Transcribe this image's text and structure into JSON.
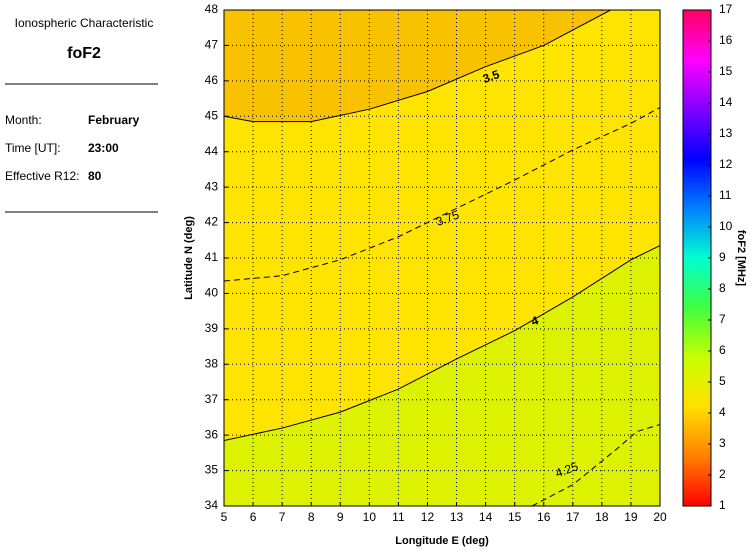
{
  "header": {
    "title": "Ionospheric Characteristic",
    "characteristic": "foF2",
    "fields": [
      [
        "Month:",
        "February"
      ],
      [
        "Time [UT]:",
        "23:00"
      ],
      [
        "Effective R12:",
        "80"
      ]
    ]
  },
  "chart_data": {
    "type": "contour",
    "xlabel": "Longitude E (deg)",
    "ylabel": "Latitude N (deg)",
    "xlim": [
      5,
      20
    ],
    "xticks": [
      5,
      6,
      7,
      8,
      9,
      10,
      11,
      12,
      13,
      14,
      15,
      16,
      17,
      18,
      19,
      20
    ],
    "ylim": [
      34,
      48
    ],
    "yticks": [
      34,
      35,
      36,
      37,
      38,
      39,
      40,
      41,
      42,
      43,
      44,
      45,
      46,
      47,
      48
    ],
    "grid": true,
    "band_colors": {
      "high": "#f8c200",
      "mid": "#ffe400",
      "low": "#ddf200"
    },
    "series": [
      {
        "name": "3.5",
        "style": "solid",
        "label_at": [
          14.2,
          46.1
        ],
        "x": [
          5,
          6,
          8,
          10,
          12,
          14,
          16,
          18.3
        ],
        "y": [
          45.0,
          44.85,
          44.85,
          45.2,
          45.7,
          46.4,
          47.0,
          48
        ]
      },
      {
        "name": "3.75",
        "style": "dashed",
        "label_at": [
          12.7,
          42.1
        ],
        "x": [
          5,
          7,
          9,
          11,
          13,
          15,
          17,
          19,
          20
        ],
        "y": [
          40.35,
          40.5,
          40.95,
          41.6,
          42.4,
          43.2,
          44.05,
          44.8,
          45.25
        ]
      },
      {
        "name": "4",
        "style": "solid",
        "label_at": [
          15.7,
          39.2
        ],
        "x": [
          5,
          7,
          9,
          11,
          13,
          15,
          17,
          19,
          20
        ],
        "y": [
          35.85,
          36.2,
          36.65,
          37.3,
          38.15,
          38.95,
          39.9,
          40.95,
          41.35
        ]
      },
      {
        "name": "4.25",
        "style": "dashed",
        "label_at": [
          16.8,
          35.0
        ],
        "x": [
          15.6,
          17,
          18.5,
          19.2,
          20
        ],
        "y": [
          34,
          34.6,
          35.6,
          36.1,
          36.3
        ]
      }
    ],
    "colorbar": {
      "label": "foF2 [MHz]",
      "lim": [
        1,
        17
      ],
      "ticks": [
        1,
        2,
        3,
        4,
        5,
        6,
        7,
        8,
        9,
        10,
        11,
        12,
        13,
        14,
        15,
        16,
        17
      ],
      "colors": [
        "#ff0000",
        "#ff8000",
        "#ffe000",
        "#c8ff00",
        "#40ff40",
        "#00ffd0",
        "#0080ff",
        "#0000ff",
        "#8000ff",
        "#ff00ff",
        "#ff0060"
      ]
    }
  }
}
